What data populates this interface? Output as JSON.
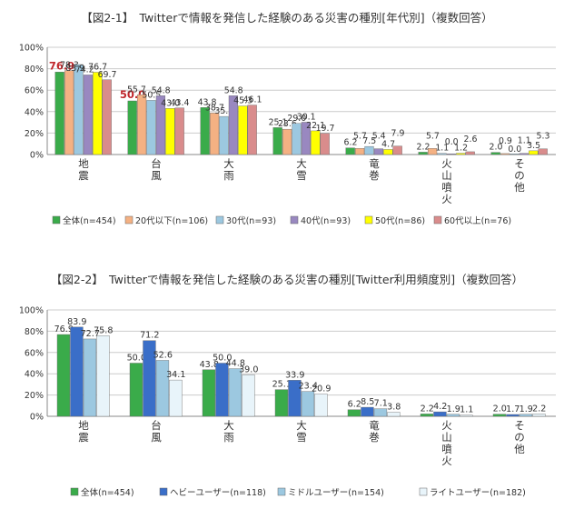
{
  "figures": [
    {
      "title": "【図2-1】　Twitterで情報を発信した経験のある災害の種別[年代別]（複数回答）"
    },
    {
      "title": "【図2-2】　Twitterで情報を発信した経験のある災害の種別[Twitter利用頻度別]（複数回答）"
    }
  ],
  "colors": {
    "series": [
      "#3aab4a",
      "#f4b183",
      "#9cc8e0",
      "#9988c0",
      "#ffff00",
      "#d98c8c"
    ],
    "series2": [
      "#3aab4a",
      "#3a6ec8",
      "#9cc8e0",
      "#e8f4fa"
    ],
    "highlight": "#c0282d",
    "grid": "#cccccc",
    "axis": "#888888",
    "text": "#333333"
  },
  "chart_data": [
    {
      "type": "bar",
      "ylim": [
        0,
        100
      ],
      "yticks": [
        "0%",
        "20%",
        "40%",
        "60%",
        "80%",
        "100%"
      ],
      "categories": [
        "地震",
        "台風",
        "大雨",
        "大雪",
        "竜巻",
        "火山噴火",
        "その他"
      ],
      "highlight": {
        "series": 0,
        "categories": [
          0,
          1
        ]
      },
      "series": [
        {
          "name": "全体(n=454)",
          "values": [
            76.9,
            50.0,
            43.8,
            25.1,
            6.2,
            2.2,
            2.0
          ],
          "labels": [
            "76.9",
            "50.0",
            "43.8",
            "25.1",
            "6.2",
            "2.2",
            "2.0"
          ]
        },
        {
          "name": "20代以下(n=106)",
          "values": [
            78.3,
            55.7,
            38.7,
            23.6,
            5.7,
            5.7,
            0.9
          ],
          "labels": [
            "78.3",
            "55.7",
            "38.7",
            "23.6",
            "5.7",
            "5.7",
            "0.9"
          ]
        },
        {
          "name": "30代(n=93)",
          "values": [
            83.9,
            50.5,
            35.5,
            29.0,
            7.5,
            1.1,
            0.0
          ],
          "labels": [
            "83.9",
            "50.5",
            "35.5",
            "29.0",
            "7.5",
            "1.1",
            "0.0"
          ]
        },
        {
          "name": "40代(n=93)",
          "values": [
            74.2,
            54.8,
            54.8,
            30.1,
            5.4,
            0.0,
            1.1
          ],
          "labels": [
            "74.2",
            "54.8",
            "54.8",
            "30.1",
            "5.4",
            "0.0",
            "1.1"
          ]
        },
        {
          "name": "50代(n=86)",
          "values": [
            76.7,
            43.0,
            45.3,
            22.1,
            4.7,
            1.2,
            3.5
          ],
          "labels": [
            "76.7",
            "43.0",
            "45.3",
            "22.1",
            "4.7",
            "1.2",
            "3.5"
          ]
        },
        {
          "name": "60代以上(n=76)",
          "values": [
            69.7,
            43.4,
            46.1,
            19.7,
            7.9,
            2.6,
            5.3
          ],
          "labels": [
            "69.7",
            "43.4",
            "46.1",
            "19.7",
            "7.9",
            "2.6",
            "5.3"
          ]
        }
      ]
    },
    {
      "type": "bar",
      "ylim": [
        0,
        100
      ],
      "yticks": [
        "0%",
        "20%",
        "40%",
        "60%",
        "80%",
        "100%"
      ],
      "categories": [
        "地震",
        "台風",
        "大雨",
        "大雪",
        "竜巻",
        "火山噴火",
        "その他"
      ],
      "series": [
        {
          "name": "全体(n=454)",
          "values": [
            76.9,
            50.0,
            43.8,
            25.1,
            6.2,
            2.2,
            2.0
          ],
          "labels": [
            "76.9",
            "50.0",
            "43.8",
            "25.1",
            "6.2",
            "2.2",
            "2.0"
          ]
        },
        {
          "name": "ヘビーユーザー(n=118)",
          "values": [
            83.9,
            71.2,
            50.0,
            33.9,
            8.5,
            4.2,
            1.7
          ],
          "labels": [
            "83.9",
            "71.2",
            "50.0",
            "33.9",
            "8.5",
            "4.2",
            "1.7"
          ]
        },
        {
          "name": "ミドルユーザー(n=154)",
          "values": [
            72.7,
            52.6,
            44.8,
            23.4,
            7.1,
            1.9,
            1.9
          ],
          "labels": [
            "72.7",
            "52.6",
            "44.8",
            "23.4",
            "7.1",
            "1.9",
            "1.9"
          ]
        },
        {
          "name": "ライトユーザー(n=182)",
          "values": [
            75.8,
            34.1,
            39.0,
            20.9,
            3.8,
            1.1,
            2.2
          ],
          "labels": [
            "75.8",
            "34.1",
            "39.0",
            "20.9",
            "3.8",
            "1.1",
            "2.2"
          ]
        }
      ]
    }
  ]
}
